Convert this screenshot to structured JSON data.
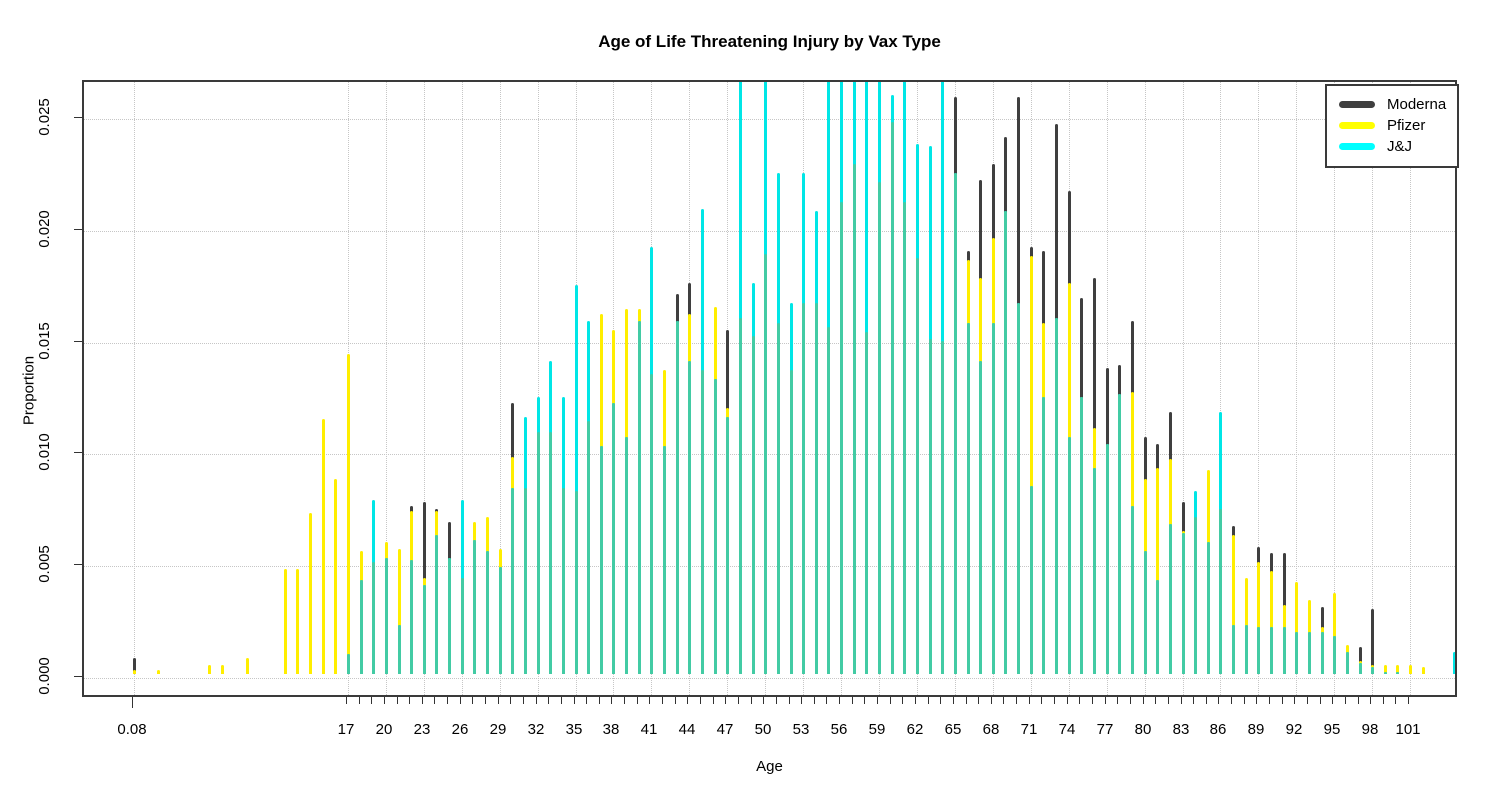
{
  "chart_data": {
    "type": "bar",
    "title": "Age of Life Threatening Injury by  Vax Type",
    "xlabel": "Age",
    "ylabel": "Proportion",
    "ylim": [
      0,
      0.0267
    ],
    "grid": true,
    "legend_position": "top-right",
    "colors": {
      "moderna": "#3f3f3f",
      "pfizer": "#ffee00",
      "jj": "#00e6e6",
      "jj_overlap_mix": "#43cba4",
      "legend_moderna": "#3f3f3f",
      "legend_pfizer": "#ffff00",
      "legend_jj": "#00ffff"
    },
    "legend": [
      {
        "name": "Moderna",
        "key": "moderna"
      },
      {
        "name": "Pfizer",
        "key": "pfizer"
      },
      {
        "name": "J&J",
        "key": "jj"
      }
    ],
    "y_ticks": [
      {
        "value": 0.0,
        "label": "0.000"
      },
      {
        "value": 0.005,
        "label": "0.005"
      },
      {
        "value": 0.01,
        "label": "0.010"
      },
      {
        "value": 0.015,
        "label": "0.015"
      },
      {
        "value": 0.02,
        "label": "0.020"
      },
      {
        "value": 0.025,
        "label": "0.025"
      }
    ],
    "x_labeled_ticks": [
      {
        "value": 0.08,
        "label": "0.08"
      },
      {
        "value": 17,
        "label": "17"
      },
      {
        "value": 20,
        "label": "20"
      },
      {
        "value": 23,
        "label": "23"
      },
      {
        "value": 26,
        "label": "26"
      },
      {
        "value": 29,
        "label": "29"
      },
      {
        "value": 32,
        "label": "32"
      },
      {
        "value": 35,
        "label": "35"
      },
      {
        "value": 38,
        "label": "38"
      },
      {
        "value": 41,
        "label": "41"
      },
      {
        "value": 44,
        "label": "44"
      },
      {
        "value": 47,
        "label": "47"
      },
      {
        "value": 50,
        "label": "50"
      },
      {
        "value": 53,
        "label": "53"
      },
      {
        "value": 56,
        "label": "56"
      },
      {
        "value": 59,
        "label": "59"
      },
      {
        "value": 62,
        "label": "62"
      },
      {
        "value": 65,
        "label": "65"
      },
      {
        "value": 68,
        "label": "68"
      },
      {
        "value": 71,
        "label": "71"
      },
      {
        "value": 74,
        "label": "74"
      },
      {
        "value": 77,
        "label": "77"
      },
      {
        "value": 80,
        "label": "80"
      },
      {
        "value": 83,
        "label": "83"
      },
      {
        "value": 86,
        "label": "86"
      },
      {
        "value": 89,
        "label": "89"
      },
      {
        "value": 92,
        "label": "92"
      },
      {
        "value": 95,
        "label": "95"
      },
      {
        "value": 98,
        "label": "98"
      },
      {
        "value": 101,
        "label": "101"
      }
    ],
    "x_minor_ticks": {
      "from": 17,
      "to": 101,
      "step": 1
    },
    "series_order": [
      "moderna",
      "pfizer",
      "jj"
    ],
    "points_format": [
      "age",
      "moderna",
      "pfizer",
      "jj"
    ],
    "points": [
      [
        0.08,
        0.0007,
        0.0002,
        0
      ],
      [
        2,
        0,
        0.0002,
        0
      ],
      [
        6,
        0,
        0.0004,
        0
      ],
      [
        7,
        0,
        0.0004,
        0
      ],
      [
        9,
        0,
        0.0007,
        0
      ],
      [
        12,
        0,
        0.0047,
        0
      ],
      [
        13,
        0,
        0.0047,
        0
      ],
      [
        14,
        0,
        0.0072,
        0
      ],
      [
        15,
        0,
        0.0114,
        0
      ],
      [
        16,
        0,
        0.0087,
        0
      ],
      [
        17,
        0.0008,
        0.0143,
        0.0009
      ],
      [
        18,
        0.0051,
        0.0055,
        0.0042
      ],
      [
        19,
        0.0048,
        0.005,
        0.0078
      ],
      [
        20,
        0.0055,
        0.0059,
        0.0052
      ],
      [
        21,
        0.0038,
        0.0056,
        0.0022
      ],
      [
        22,
        0.0075,
        0.0073,
        0.0051
      ],
      [
        23,
        0.0077,
        0.0043,
        0.004
      ],
      [
        24,
        0.0074,
        0.0073,
        0.0062
      ],
      [
        25,
        0.0068,
        0.005,
        0.0052
      ],
      [
        26,
        0.004,
        0.0043,
        0.0078
      ],
      [
        27,
        0.0066,
        0.0068,
        0.006
      ],
      [
        28,
        0.006,
        0.007,
        0.0055
      ],
      [
        29,
        0.005,
        0.0056,
        0.0048
      ],
      [
        30,
        0.0121,
        0.0097,
        0.0083
      ],
      [
        31,
        0.0079,
        0.0083,
        0.0115
      ],
      [
        32,
        0.0108,
        0.0108,
        0.0124
      ],
      [
        33,
        0.0107,
        0.0108,
        0.014
      ],
      [
        34,
        0.0083,
        0.0083,
        0.0124
      ],
      [
        35,
        0.0081,
        0.0082,
        0.0174
      ],
      [
        36,
        0.0113,
        0.0113,
        0.0158
      ],
      [
        37,
        0.01,
        0.0161,
        0.0102
      ],
      [
        38,
        0.0099,
        0.0154,
        0.0121
      ],
      [
        39,
        0.0104,
        0.0163,
        0.0106
      ],
      [
        40,
        0.0109,
        0.0163,
        0.0158
      ],
      [
        41,
        0.0134,
        0.0134,
        0.0191
      ],
      [
        42,
        0.0105,
        0.0136,
        0.0102
      ],
      [
        43,
        0.017,
        0.0156,
        0.0158
      ],
      [
        44,
        0.0175,
        0.0161,
        0.014
      ],
      [
        45,
        0.0134,
        0.0136,
        0.0208
      ],
      [
        46,
        0.0119,
        0.0164,
        0.0132
      ],
      [
        47,
        0.0154,
        0.0119,
        0.0115
      ],
      [
        48,
        0.0159,
        0.0159,
        0.027
      ],
      [
        49,
        0.0151,
        0.0151,
        0.0175
      ],
      [
        50,
        0.0188,
        0.0188,
        0.0265
      ],
      [
        51,
        0.0157,
        0.0157,
        0.0224
      ],
      [
        52,
        0.0136,
        0.0136,
        0.0166
      ],
      [
        53,
        0.0166,
        0.0166,
        0.0224
      ],
      [
        54,
        0.0166,
        0.0166,
        0.0207
      ],
      [
        55,
        0.0155,
        0.0155,
        0.027
      ],
      [
        56,
        0.0211,
        0.0188,
        0.027
      ],
      [
        57,
        0.0228,
        0.0201,
        0.027
      ],
      [
        58,
        0.0153,
        0.0153,
        0.027
      ],
      [
        59,
        0.022,
        0.0199,
        0.0267
      ],
      [
        60,
        0.0247,
        0.0219,
        0.0259
      ],
      [
        61,
        0.0211,
        0.0193,
        0.027
      ],
      [
        62,
        0.0186,
        0.0186,
        0.0237
      ],
      [
        63,
        0.015,
        0.015,
        0.0236
      ],
      [
        64,
        0.0149,
        0.0149,
        0.0268
      ],
      [
        65,
        0.0258,
        0.0196,
        0.0224
      ],
      [
        66,
        0.0189,
        0.0185,
        0.0157
      ],
      [
        67,
        0.0221,
        0.0177,
        0.014
      ],
      [
        68,
        0.0228,
        0.0195,
        0.0157
      ],
      [
        69,
        0.024,
        0.0157,
        0.0207
      ],
      [
        70,
        0.0258,
        0.0155,
        0.0166
      ],
      [
        71,
        0.0191,
        0.0187,
        0.0084
      ],
      [
        72,
        0.0189,
        0.0157,
        0.0124
      ],
      [
        73,
        0.0246,
        0.0149,
        0.0159
      ],
      [
        74,
        0.0216,
        0.0175,
        0.0106
      ],
      [
        75,
        0.0168,
        0.0124,
        0.0124
      ],
      [
        76,
        0.0177,
        0.011,
        0.0092
      ],
      [
        77,
        0.0137,
        0.0101,
        0.0103
      ],
      [
        78,
        0.0138,
        0.0122,
        0.0125
      ],
      [
        79,
        0.0158,
        0.0126,
        0.0075
      ],
      [
        80,
        0.0106,
        0.0087,
        0.0055
      ],
      [
        81,
        0.0103,
        0.0092,
        0.0042
      ],
      [
        82,
        0.0117,
        0.0096,
        0.0067
      ],
      [
        83,
        0.0077,
        0.0064,
        0.0063
      ],
      [
        84,
        0.007,
        0.007,
        0.0082
      ],
      [
        85,
        0.0062,
        0.0091,
        0.0059
      ],
      [
        86,
        0.007,
        0.0074,
        0.0117
      ],
      [
        87,
        0.0066,
        0.0062,
        0.0022
      ],
      [
        88,
        0.0036,
        0.0043,
        0.0022
      ],
      [
        89,
        0.0057,
        0.005,
        0.0021
      ],
      [
        90,
        0.0054,
        0.0046,
        0.0021
      ],
      [
        91,
        0.0054,
        0.0031,
        0.0021
      ],
      [
        92,
        0.0036,
        0.0041,
        0.0019
      ],
      [
        93,
        0.0024,
        0.0033,
        0.0019
      ],
      [
        94,
        0.003,
        0.0021,
        0.0019
      ],
      [
        95,
        0.0018,
        0.0036,
        0.0017
      ],
      [
        96,
        0.0009,
        0.0013,
        0.001
      ],
      [
        97,
        0.0012,
        0.0006,
        0.0005
      ],
      [
        98,
        0.0029,
        0.0004,
        0.0003
      ],
      [
        99,
        0.0002,
        0.0004,
        0.0001
      ],
      [
        100,
        0.0002,
        0.0004,
        0.0001
      ],
      [
        101,
        0.0002,
        0.0004,
        0
      ],
      [
        102,
        0,
        0.0003,
        0
      ],
      [
        104.5,
        0,
        0,
        0.001
      ]
    ]
  }
}
